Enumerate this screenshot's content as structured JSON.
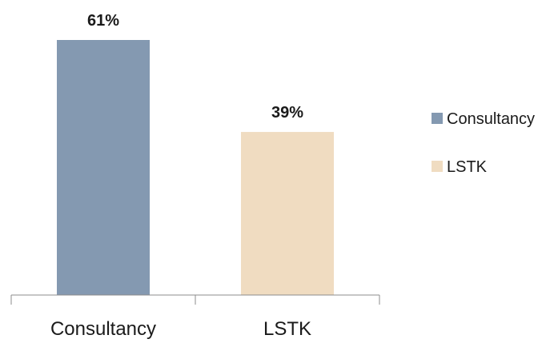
{
  "chart_data": {
    "type": "bar",
    "title": "",
    "xlabel": "",
    "ylabel": "",
    "categories": [
      "Consultancy",
      "LSTK"
    ],
    "values": [
      61,
      39
    ],
    "data_labels": [
      "61%",
      "39%"
    ],
    "unit": "%",
    "ylim": [
      0,
      61
    ],
    "grid": false,
    "legend_position": "right",
    "colors": [
      "#8499B1",
      "#F0DCC1"
    ],
    "legend": [
      {
        "label": "Consultancy",
        "color": "#8499B1"
      },
      {
        "label": "LSTK",
        "color": "#F0DCC1"
      }
    ]
  }
}
